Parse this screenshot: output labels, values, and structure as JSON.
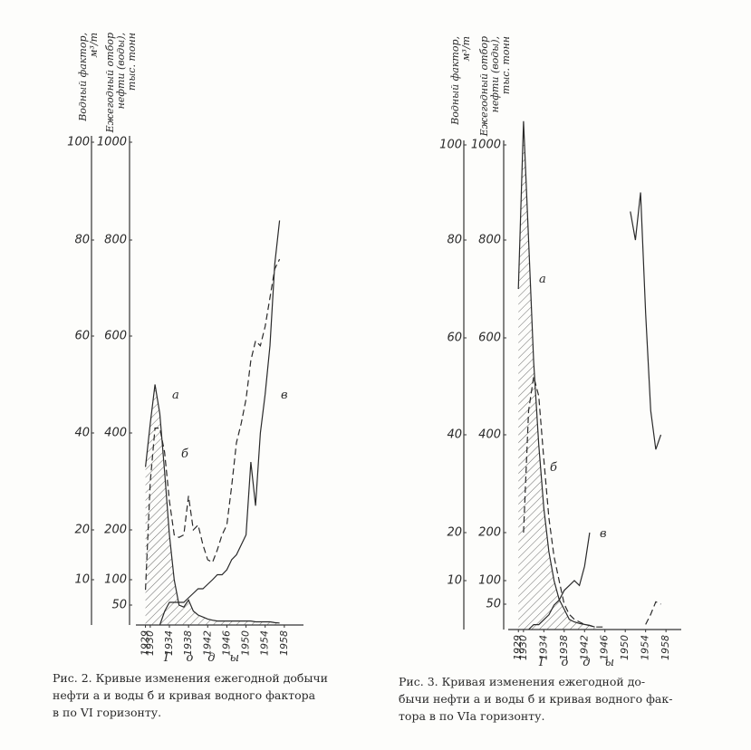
{
  "chart_data": [
    {
      "type": "line",
      "ylabel": [
        "Водный фактор,",
        "м³/т"
      ],
      "y2label": [
        "Ежегодный отбор",
        "нефти (воды),",
        "тыс. тонн"
      ],
      "xlabel": "Годы",
      "x": [
        1929,
        1930,
        1931,
        1932,
        1933,
        1934,
        1935,
        1936,
        1937,
        1938,
        1939,
        1940,
        1941,
        1942,
        1943,
        1944,
        1945,
        1946,
        1947,
        1948,
        1949,
        1950,
        1951,
        1952,
        1953,
        1954,
        1955,
        1956,
        1957
      ],
      "xlim": [
        1927,
        1962
      ],
      "xticks": [
        1929,
        1930,
        1934,
        1938,
        1942,
        1946,
        1950,
        1954,
        1958
      ],
      "ylim": [
        0,
        100
      ],
      "yticks": [
        10,
        20,
        40,
        60,
        80,
        100
      ],
      "y2lim": [
        0,
        1000
      ],
      "y2ticks": [
        50,
        100,
        200,
        400,
        600,
        800,
        1000
      ],
      "series": [
        {
          "name": "а",
          "color": "#2a2a2a",
          "axis": "y2",
          "line_style": "solid",
          "fill": "hatched",
          "values": [
            330,
            420,
            500,
            440,
            320,
            190,
            100,
            50,
            45,
            60,
            35,
            25,
            20,
            15,
            12,
            10,
            10,
            10,
            10,
            10,
            10,
            10,
            10,
            8,
            8,
            8,
            8,
            6,
            5
          ]
        },
        {
          "name": "б",
          "color": "#2a2a2a",
          "axis": "y2",
          "line_style": "dashed",
          "values": [
            80,
            300,
            410,
            410,
            360,
            260,
            190,
            185,
            190,
            270,
            200,
            210,
            170,
            140,
            135,
            160,
            190,
            210,
            290,
            380,
            420,
            470,
            550,
            590,
            580,
            620,
            680,
            740,
            760
          ]
        },
        {
          "name": "в",
          "color": "#2a2a2a",
          "line_style": "solid",
          "values": [
            null,
            null,
            null,
            0,
            3,
            5,
            5,
            5,
            5,
            6,
            7,
            8,
            8,
            9,
            10,
            11,
            11,
            12,
            14,
            15,
            17,
            19,
            34,
            25,
            40,
            48,
            58,
            75,
            84
          ]
        }
      ],
      "caption": [
        "Рис. 2. Кривые изменения ежегодной добычи",
        "нефти а и воды б и кривая водного фактора",
        "в по VI горизонту."
      ]
    },
    {
      "type": "line",
      "ylabel": [
        "Водный фактор,",
        "м³/т"
      ],
      "y2label": [
        "Ежегодный отбор",
        "нефти (воды),",
        "тыс. тонн"
      ],
      "xlabel": "Годы",
      "x": [
        1929,
        1930,
        1931,
        1932,
        1933,
        1934,
        1935,
        1936,
        1937,
        1938,
        1939,
        1940,
        1941,
        1942,
        1943,
        1944,
        1945,
        1946,
        1947,
        1948,
        1949,
        1950,
        1951,
        1952,
        1953,
        1954,
        1955,
        1956,
        1957
      ],
      "xlim": [
        1927,
        1961
      ],
      "xticks": [
        1929,
        1930,
        1934,
        1938,
        1942,
        1946,
        1950,
        1954,
        1958
      ],
      "ylim": [
        0,
        100
      ],
      "yticks": [
        10,
        20,
        40,
        60,
        80,
        100
      ],
      "y2lim": [
        0,
        1000
      ],
      "y2ticks": [
        50,
        100,
        200,
        400,
        600,
        800,
        1000
      ],
      "series": [
        {
          "name": "а",
          "color": "#2a2a2a",
          "axis": "y2",
          "line_style": "solid",
          "fill": "hatched",
          "values": [
            700,
            1050,
            800,
            550,
            380,
            250,
            160,
            100,
            60,
            40,
            20,
            15,
            12,
            10,
            8,
            5,
            null,
            null,
            null,
            null,
            null,
            null,
            null,
            null,
            null,
            null,
            null,
            null,
            null
          ]
        },
        {
          "name": "б",
          "color": "#2a2a2a",
          "axis": "y2",
          "line_style": "dashed",
          "values": [
            null,
            200,
            450,
            520,
            480,
            350,
            230,
            150,
            100,
            50,
            30,
            20,
            15,
            10,
            8,
            5,
            5,
            5,
            null,
            null,
            null,
            null,
            null,
            null,
            null,
            10,
            30,
            55,
            50
          ]
        },
        {
          "name": "в",
          "color": "#2a2a2a",
          "line_style": "solid",
          "values": [
            null,
            null,
            0,
            1,
            1,
            2,
            3,
            5,
            6,
            8,
            9,
            10,
            9,
            13,
            20,
            null,
            null,
            null,
            null,
            null,
            null,
            null,
            86,
            80,
            90,
            65,
            45,
            37,
            40
          ]
        }
      ],
      "caption": [
        "Рис. 3. Кривая изменения ежегодной до-",
        "бычи нефти а и воды б и кривая водного фак-",
        "тора в по VIа горизонту."
      ]
    }
  ]
}
